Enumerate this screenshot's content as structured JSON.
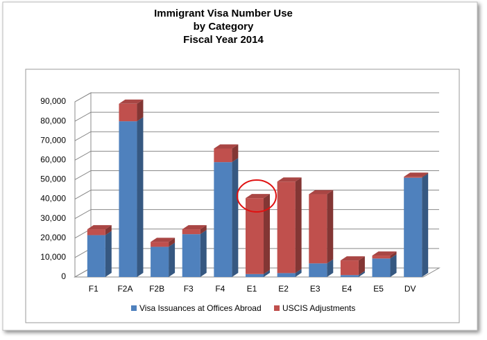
{
  "chart_data": {
    "type": "bar3d-stacked",
    "title": [
      "Immigrant Visa Number Use",
      "by Category",
      "Fiscal Year 2014"
    ],
    "categories": [
      "F1",
      "F2A",
      "F2B",
      "F3",
      "F4",
      "E1",
      "E2",
      "E3",
      "E4",
      "E5",
      "DV"
    ],
    "series": [
      {
        "name": "Visa Issuances at Offices Abroad",
        "color": "#4f81bd",
        "values": [
          21500,
          80000,
          15500,
          22000,
          59000,
          1500,
          2000,
          7000,
          1000,
          9500,
          51000
        ]
      },
      {
        "name": "USCIS Adjustments",
        "color": "#c0504d",
        "values": [
          3000,
          9000,
          2500,
          2500,
          7000,
          39000,
          47000,
          35500,
          7500,
          1500,
          500
        ]
      }
    ],
    "ylim": [
      0,
      90000
    ],
    "yticks": [
      0,
      {
        "value": 10000,
        "label": "10,000"
      },
      {
        "value": 20000,
        "label": "20,000"
      },
      {
        "value": 30000,
        "label": "30,000"
      },
      {
        "value": 40000,
        "label": "40,000"
      },
      {
        "value": 50000,
        "label": "50,000"
      },
      {
        "value": 60000,
        "label": "60,000"
      },
      {
        "value": 70000,
        "label": "70,000"
      },
      {
        "value": 80000,
        "label": "80,000"
      },
      {
        "value": 90000,
        "label": "90,000"
      }
    ],
    "grid": true
  }
}
